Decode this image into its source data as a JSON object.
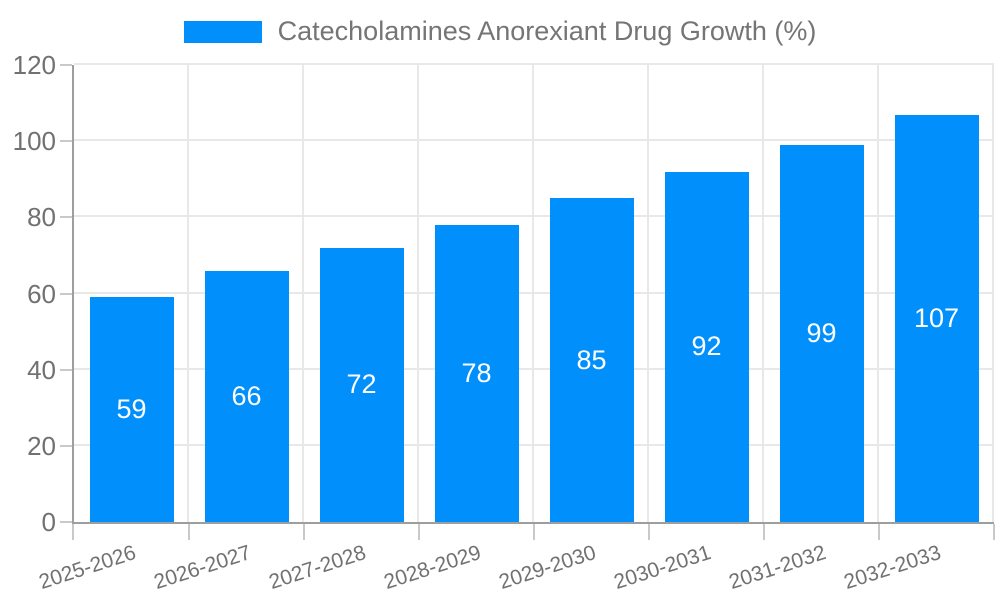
{
  "legend": {
    "label": "Catecholamines Anorexiant Drug Growth (%)"
  },
  "chart_data": {
    "type": "bar",
    "title": "Catecholamines Anorexiant Drug Growth (%)",
    "categories": [
      "2025-2026",
      "2026-2027",
      "2027-2028",
      "2028-2029",
      "2029-2030",
      "2030-2031",
      "2031-2032",
      "2032-2033"
    ],
    "values": [
      59,
      66,
      72,
      78,
      85,
      92,
      99,
      107
    ],
    "value_labels_position": "inside-center",
    "xlabel": "",
    "ylabel": "",
    "ylim": [
      0,
      120
    ],
    "yticks": [
      0,
      20,
      40,
      60,
      80,
      100,
      120
    ],
    "grid": "on",
    "legend_position": "top-center"
  },
  "colors": {
    "bar": "#008FFB",
    "axis": "#9e9e9e",
    "grid": "#e8e8e8",
    "tick": "#c9c9c9",
    "label_text": "#717171",
    "legend_text": "#757575",
    "bar_label_text": "#ffffff"
  }
}
